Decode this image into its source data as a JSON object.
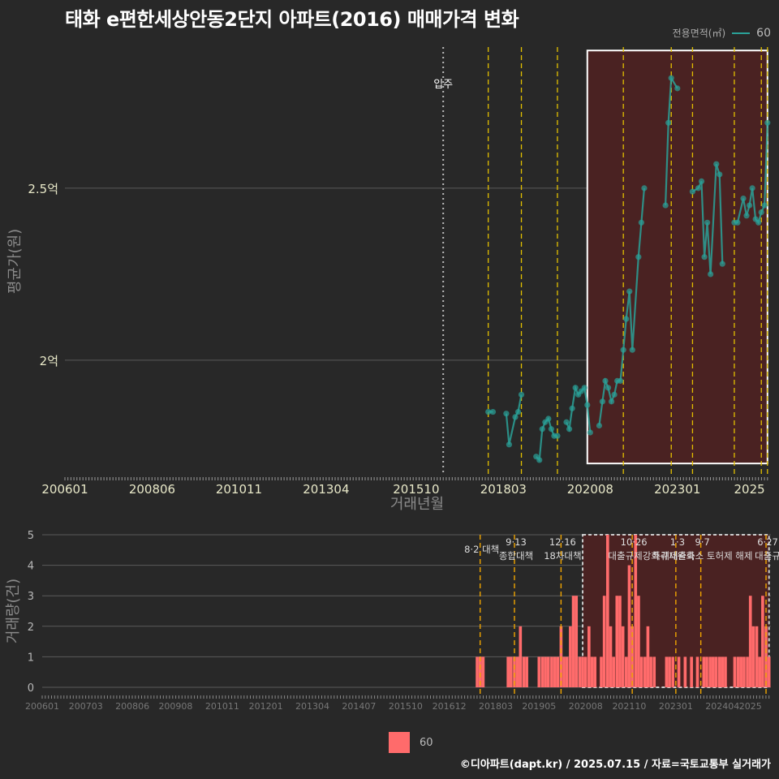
{
  "chart_data": [
    {
      "type": "line",
      "title": "태화 e편한세상안동2단지 아파트(2016) 매매가격 변화",
      "xlabel": "거래년월",
      "ylabel": "평균가(원)",
      "x_tick_labels": [
        "200601",
        "200806",
        "201011",
        "201304",
        "201510",
        "201803",
        "202008",
        "202301",
        "2025"
      ],
      "y_ticks": [
        {
          "value": 2.0,
          "label": "2억"
        },
        {
          "value": 2.5,
          "label": "2.5억"
        }
      ],
      "xlim": [
        2006.0,
        2025.55
      ],
      "ylim": [
        1.665,
        2.91
      ],
      "legend_title": "전용면적(㎡)",
      "legend_entries": [
        "60"
      ],
      "series": [
        {
          "name": "60",
          "color": "#2aa198",
          "points": [
            [
              2017.75,
              1.85
            ],
            [
              2017.88,
              1.85
            ],
            [
              2018.25,
              1.845
            ],
            [
              2018.33,
              1.755
            ],
            [
              2018.5,
              1.835
            ],
            [
              2018.58,
              1.85
            ],
            [
              2018.67,
              1.9
            ],
            [
              2019.08,
              1.72
            ],
            [
              2019.17,
              1.71
            ],
            [
              2019.25,
              1.8
            ],
            [
              2019.33,
              1.82
            ],
            [
              2019.42,
              1.83
            ],
            [
              2019.5,
              1.8
            ],
            [
              2019.58,
              1.78
            ],
            [
              2019.67,
              1.78
            ],
            [
              2019.92,
              1.82
            ],
            [
              2020.0,
              1.8
            ],
            [
              2020.08,
              1.86
            ],
            [
              2020.17,
              1.92
            ],
            [
              2020.25,
              1.9
            ],
            [
              2020.33,
              1.91
            ],
            [
              2020.42,
              1.92
            ],
            [
              2020.5,
              1.87
            ],
            [
              2020.58,
              1.79
            ],
            [
              2020.83,
              1.81
            ],
            [
              2020.92,
              1.88
            ],
            [
              2021.0,
              1.94
            ],
            [
              2021.08,
              1.92
            ],
            [
              2021.17,
              1.88
            ],
            [
              2021.25,
              1.9
            ],
            [
              2021.33,
              1.94
            ],
            [
              2021.42,
              1.94
            ],
            [
              2021.5,
              2.03
            ],
            [
              2021.58,
              2.12
            ],
            [
              2021.67,
              2.2
            ],
            [
              2021.75,
              2.03
            ],
            [
              2021.92,
              2.3
            ],
            [
              2022.0,
              2.4
            ],
            [
              2022.08,
              2.5
            ],
            [
              2022.67,
              2.45
            ],
            [
              2022.75,
              2.69
            ],
            [
              2022.83,
              2.82
            ],
            [
              2023.0,
              2.79
            ],
            [
              2023.42,
              2.49
            ],
            [
              2023.58,
              2.5
            ],
            [
              2023.67,
              2.52
            ],
            [
              2023.75,
              2.3
            ],
            [
              2023.83,
              2.4
            ],
            [
              2023.92,
              2.25
            ],
            [
              2024.08,
              2.57
            ],
            [
              2024.17,
              2.54
            ],
            [
              2024.25,
              2.28
            ],
            [
              2024.58,
              2.4
            ],
            [
              2024.67,
              2.4
            ],
            [
              2024.83,
              2.47
            ],
            [
              2024.92,
              2.42
            ],
            [
              2025.0,
              2.45
            ],
            [
              2025.08,
              2.5
            ],
            [
              2025.17,
              2.41
            ],
            [
              2025.25,
              2.4
            ],
            [
              2025.33,
              2.43
            ],
            [
              2025.42,
              2.45
            ],
            [
              2025.5,
              2.69
            ]
          ]
        }
      ],
      "annotation_main": {
        "label": "입주",
        "x": 2016.5
      },
      "policy_lines": [
        2017.75,
        2018.67,
        2019.67,
        2021.5,
        2022.83,
        2023.42,
        2024.58,
        2025.33,
        2025.5
      ],
      "highlight_range": {
        "x": [
          2020.5,
          2025.5
        ],
        "y": [
          1.7,
          2.9
        ]
      }
    },
    {
      "type": "bar",
      "ylabel": "거래량(건)",
      "xlim": [
        2006.0,
        2025.55
      ],
      "ylim": [
        0,
        5
      ],
      "y_ticks": [
        0,
        1,
        2,
        3,
        4,
        5
      ],
      "x_tick_labels": [
        "200601",
        "200703",
        "200806",
        "200908",
        "201011",
        "201201",
        "201304",
        "201407",
        "201510",
        "201612",
        "201803",
        "201905",
        "202008",
        "202110",
        "202301",
        "202404",
        "2025"
      ],
      "legend_entries": [
        "60"
      ],
      "bar_color": "#ff6b6b",
      "bars": [
        [
          2017.67,
          1
        ],
        [
          2017.75,
          1
        ],
        [
          2017.83,
          1
        ],
        [
          2018.5,
          1
        ],
        [
          2018.58,
          1
        ],
        [
          2018.67,
          1
        ],
        [
          2018.75,
          1
        ],
        [
          2018.83,
          2
        ],
        [
          2018.92,
          1
        ],
        [
          2019.0,
          1
        ],
        [
          2019.33,
          1
        ],
        [
          2019.42,
          1
        ],
        [
          2019.5,
          1
        ],
        [
          2019.58,
          1
        ],
        [
          2019.67,
          1
        ],
        [
          2019.75,
          1
        ],
        [
          2019.83,
          1
        ],
        [
          2019.92,
          2
        ],
        [
          2020.0,
          1
        ],
        [
          2020.08,
          1
        ],
        [
          2020.17,
          2
        ],
        [
          2020.25,
          3
        ],
        [
          2020.33,
          3
        ],
        [
          2020.42,
          1
        ],
        [
          2020.5,
          1
        ],
        [
          2020.58,
          1
        ],
        [
          2020.67,
          2
        ],
        [
          2020.75,
          1
        ],
        [
          2020.83,
          1
        ],
        [
          2021.0,
          1
        ],
        [
          2021.08,
          3
        ],
        [
          2021.17,
          5
        ],
        [
          2021.25,
          2
        ],
        [
          2021.33,
          1
        ],
        [
          2021.42,
          3
        ],
        [
          2021.5,
          3
        ],
        [
          2021.58,
          2
        ],
        [
          2021.67,
          1
        ],
        [
          2021.75,
          4
        ],
        [
          2021.83,
          2
        ],
        [
          2021.92,
          5
        ],
        [
          2022.0,
          3
        ],
        [
          2022.08,
          1
        ],
        [
          2022.17,
          1
        ],
        [
          2022.25,
          2
        ],
        [
          2022.33,
          1
        ],
        [
          2022.42,
          1
        ],
        [
          2022.75,
          1
        ],
        [
          2022.83,
          1
        ],
        [
          2022.92,
          1
        ],
        [
          2023.08,
          1
        ],
        [
          2023.25,
          1
        ],
        [
          2023.42,
          1
        ],
        [
          2023.58,
          1
        ],
        [
          2023.75,
          1
        ],
        [
          2023.83,
          1
        ],
        [
          2023.92,
          1
        ],
        [
          2024.0,
          1
        ],
        [
          2024.08,
          1
        ],
        [
          2024.17,
          1
        ],
        [
          2024.25,
          1
        ],
        [
          2024.33,
          1
        ],
        [
          2024.58,
          1
        ],
        [
          2024.67,
          1
        ],
        [
          2024.75,
          1
        ],
        [
          2024.83,
          1
        ],
        [
          2024.92,
          1
        ],
        [
          2025.0,
          3
        ],
        [
          2025.08,
          2
        ],
        [
          2025.17,
          2
        ],
        [
          2025.25,
          1
        ],
        [
          2025.33,
          3
        ],
        [
          2025.42,
          2
        ],
        [
          2025.5,
          1
        ]
      ],
      "policy_annotations": [
        {
          "x": 2017.75,
          "labels": [
            "8·2 대책"
          ]
        },
        {
          "x": 2018.67,
          "labels": [
            "9·13",
            "종합대책"
          ]
        },
        {
          "x": 2019.92,
          "labels": [
            "12·16",
            "18차대책"
          ]
        },
        {
          "x": 2021.83,
          "labels": [
            "10·26",
            "대출규제강화"
          ]
        },
        {
          "x": 2023.0,
          "labels": [
            "1·3",
            "규제완화"
          ]
        },
        {
          "x": 2023.67,
          "labels": [
            "9·7",
            "특례대출축소 토허제 해제"
          ]
        },
        {
          "x": 2025.42,
          "labels": [
            "6·27",
            "대출규"
          ]
        }
      ],
      "highlight_range": {
        "x": [
          2020.5,
          2025.5
        ]
      }
    }
  ],
  "footer": "©디아파트(dapt.kr) / 2025.07.15 / 자료=국토교통부 실거래가"
}
